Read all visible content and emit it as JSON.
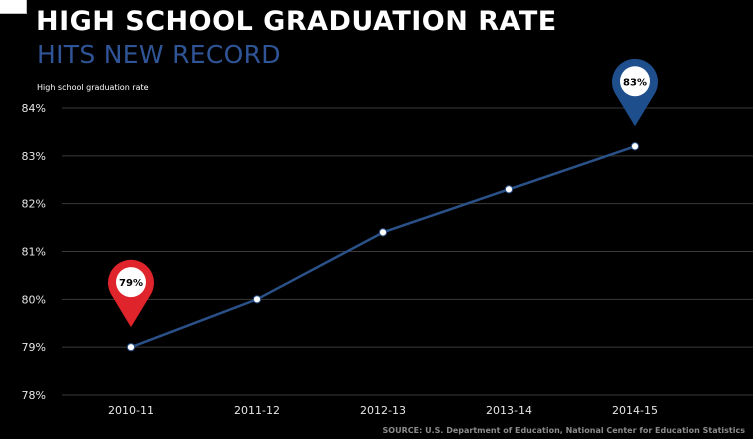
{
  "header": {
    "title": "HIGH SCHOOL GRADUATION RATE",
    "subtitle": "HITS NEW RECORD"
  },
  "source_text": "SOURCE: U.S. Department of Education, National Center for Education Statistics",
  "colors": {
    "background": "#000000",
    "title": "#ffffff",
    "subtitle": "#2f5597",
    "line": "#2a5188",
    "grid": "#3a3a3a",
    "axis_text": "#e6e6e6",
    "pin_start": "#e0242b",
    "pin_end": "#1f4e8c"
  },
  "chart_data": {
    "type": "line",
    "title": "HIGH SCHOOL GRADUATION RATE",
    "subtitle": "HITS NEW RECORD",
    "ylabel": "High school graduation rate",
    "xlabel": "",
    "categories": [
      "2010-11",
      "2011-12",
      "2012-13",
      "2013-14",
      "2014-15"
    ],
    "series": [
      {
        "values": [
          79,
          80,
          81.4,
          82.3,
          83.2
        ]
      }
    ],
    "ylim": [
      78,
      84
    ],
    "yticks": [
      78,
      79,
      80,
      81,
      82,
      83,
      84
    ],
    "ytick_labels": [
      "78%",
      "79%",
      "80%",
      "81%",
      "82%",
      "83%",
      "84%"
    ],
    "grid": true,
    "legend": "none",
    "annotations": [
      {
        "category": "2010-11",
        "text": "79%",
        "style": "map-pin",
        "color": "red"
      },
      {
        "category": "2014-15",
        "text": "83%",
        "style": "map-pin",
        "color": "blue"
      }
    ]
  }
}
